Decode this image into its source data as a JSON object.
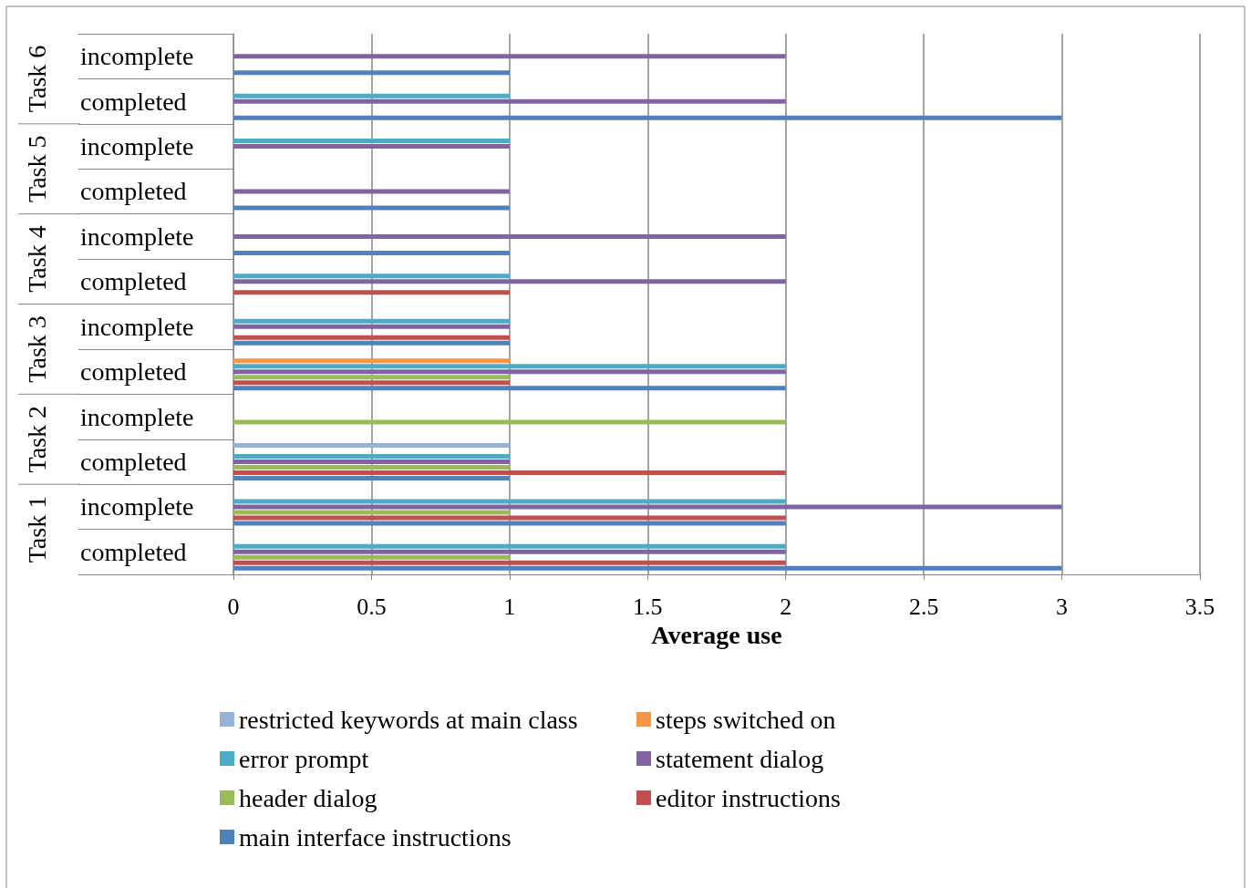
{
  "chart_data": {
    "type": "bar",
    "orientation": "horizontal",
    "xlabel": "Average use",
    "categories": [
      "incomplete",
      "completed",
      "incomplete",
      "completed",
      "incomplete",
      "completed",
      "incomplete",
      "completed",
      "incomplete",
      "completed",
      "incomplete",
      "completed"
    ],
    "annotations": [
      "Task 6",
      "Task 5",
      "Task 4",
      "Task 3",
      "Task 2",
      "Task 1"
    ],
    "series": [
      {
        "name": "restricted keywords at main class",
        "color": "#95b3d7",
        "values": [
          0,
          0,
          0,
          0,
          0,
          0,
          0,
          0,
          0,
          1,
          0,
          0
        ]
      },
      {
        "name": "steps switched on",
        "color": "#f79646",
        "values": [
          0,
          0,
          0,
          0,
          0,
          0,
          0,
          1,
          0,
          0,
          0,
          0
        ]
      },
      {
        "name": "error prompt",
        "color": "#4bacc6",
        "values": [
          0,
          1,
          1,
          0,
          0,
          1,
          1,
          2,
          0,
          1,
          2,
          2
        ]
      },
      {
        "name": "statement dialog",
        "color": "#8064a2",
        "values": [
          2,
          2,
          1,
          1,
          2,
          2,
          1,
          2,
          0,
          1,
          3,
          2
        ]
      },
      {
        "name": "header dialog",
        "color": "#9bbb59",
        "values": [
          0,
          0,
          0,
          0,
          0,
          0,
          0,
          1,
          2,
          1,
          1,
          1
        ]
      },
      {
        "name": "editor instructions",
        "color": "#c0504d",
        "values": [
          0,
          0,
          0,
          0,
          0,
          1,
          1,
          1,
          0,
          2,
          2,
          2
        ]
      },
      {
        "name": "main interface instructions",
        "color": "#4f81bd",
        "values": [
          1,
          3,
          0,
          1,
          1,
          0,
          1,
          2,
          0,
          1,
          2,
          3
        ]
      }
    ],
    "xlim": [
      0,
      3.5
    ],
    "xticks": [
      0,
      0.5,
      1,
      1.5,
      2,
      2.5,
      3,
      3.5
    ],
    "grid": "x",
    "legend": "bottom"
  }
}
